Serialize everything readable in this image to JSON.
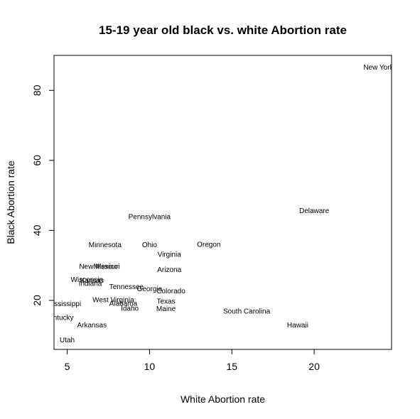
{
  "chart_data": {
    "type": "scatter",
    "title": "15-19 year old black vs. white Abortion rate",
    "xlabel": "White Abortion rate",
    "ylabel": "Black Abortion rate",
    "xlim": [
      4.2,
      24.7
    ],
    "ylim": [
      6.0,
      90.0
    ],
    "x_ticks": [
      5,
      10,
      15,
      20
    ],
    "y_ticks": [
      20,
      40,
      60,
      80
    ],
    "grid": false,
    "legend": "none",
    "marker": "text-label",
    "points": [
      {
        "label": "New York",
        "x": 23.9,
        "y": 86.5
      },
      {
        "label": "Delaware",
        "x": 20.0,
        "y": 45.5
      },
      {
        "label": "Pennsylvania",
        "x": 10.0,
        "y": 43.7
      },
      {
        "label": "Minnesota",
        "x": 7.3,
        "y": 35.7
      },
      {
        "label": "Ohio",
        "x": 10.0,
        "y": 35.7
      },
      {
        "label": "Oregon",
        "x": 13.6,
        "y": 35.8
      },
      {
        "label": "Virginia",
        "x": 11.2,
        "y": 33.0
      },
      {
        "label": "New Mexico",
        "x": 6.9,
        "y": 29.5
      },
      {
        "label": "Missouri",
        "x": 7.4,
        "y": 29.5
      },
      {
        "label": "Arizona",
        "x": 11.2,
        "y": 28.6
      },
      {
        "label": "Wisconsin",
        "x": 6.2,
        "y": 25.8
      },
      {
        "label": "Kansas",
        "x": 6.5,
        "y": 25.6
      },
      {
        "label": "Indiana",
        "x": 6.4,
        "y": 24.7
      },
      {
        "label": "Tennessee",
        "x": 8.6,
        "y": 23.8
      },
      {
        "label": "Georgia",
        "x": 10.0,
        "y": 23.1
      },
      {
        "label": "Colorado",
        "x": 11.3,
        "y": 22.5
      },
      {
        "label": "West Virginia",
        "x": 7.8,
        "y": 20.0
      },
      {
        "label": "Texas",
        "x": 11.0,
        "y": 19.6
      },
      {
        "label": "Alabama",
        "x": 8.4,
        "y": 19.0
      },
      {
        "label": "Idaho",
        "x": 8.8,
        "y": 17.6
      },
      {
        "label": "Maine",
        "x": 11.0,
        "y": 17.5
      },
      {
        "label": "Mississippi",
        "x": 4.8,
        "y": 18.9
      },
      {
        "label": "South Carolina",
        "x": 15.9,
        "y": 16.8
      },
      {
        "label": "Kentucky",
        "x": 4.5,
        "y": 14.9
      },
      {
        "label": "Arkansas",
        "x": 6.5,
        "y": 12.8
      },
      {
        "label": "Hawaii",
        "x": 19.0,
        "y": 12.8
      },
      {
        "label": "Utah",
        "x": 5.0,
        "y": 8.5
      }
    ]
  }
}
